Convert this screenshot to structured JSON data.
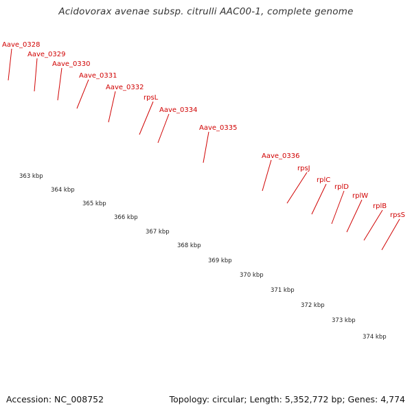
{
  "title": "Acidovorax avenae subsp. citrulli AAC00-1, complete genome",
  "footer": {
    "accession": "Accession: NC_008752",
    "topology": "Topology: circular; Length: 5,352,772 bp; Genes: 4,774"
  },
  "colors": {
    "cds_arrow": "#ee1111",
    "pink_block": "#f08a8a",
    "dark_grey_block": "#6e6e6e",
    "light_grey_block": "#c8c8c8",
    "cyan_block": "#00e5ee",
    "olive_block": "#6e8f1f",
    "label_red": "#d00000",
    "tick_green": "#1a8a1a",
    "backbone_grey": "#8a8a8a"
  },
  "scale_labels": [
    "363 kbp",
    "364 kbp",
    "365 kbp",
    "366 kbp",
    "367 kbp",
    "368 kbp",
    "369 kbp",
    "370 kbp",
    "371 kbp",
    "372 kbp",
    "373 kbp",
    "374 kbp"
  ],
  "gene_labels": [
    "Aave_0328",
    "Aave_0329",
    "Aave_0330",
    "Aave_0331",
    "Aave_0332",
    "rpsL",
    "Aave_0334",
    "Aave_0335",
    "Aave_0336",
    "rpsJ",
    "rplC",
    "rplD",
    "rplW",
    "rplB",
    "rpsS"
  ]
}
